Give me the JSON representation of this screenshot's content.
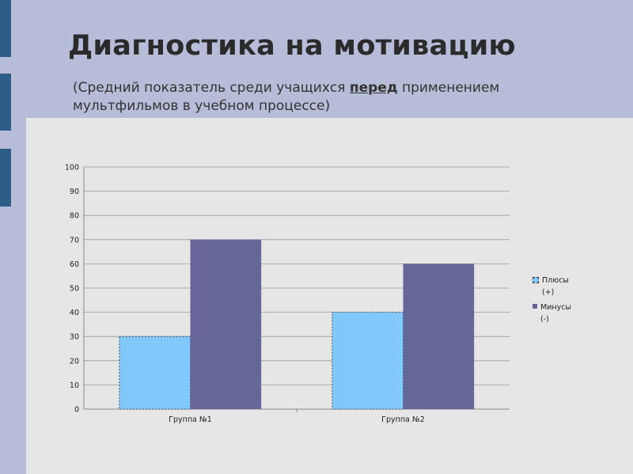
{
  "slide": {
    "title": "Диагностика на мотивацию",
    "subtitle_before": "(Средний показатель среди учащихся ",
    "subtitle_em": "перед",
    "subtitle_after": " применением мультфильмов в учебном процессе)"
  },
  "chart_data": {
    "type": "bar",
    "categories": [
      "Группа №1",
      "Группа №2"
    ],
    "series": [
      {
        "name": "Плюсы (+)",
        "values": [
          30,
          40
        ],
        "color": "#80c8ff"
      },
      {
        "name": "Минусы (-)",
        "values": [
          70,
          60
        ],
        "color": "#666699"
      }
    ],
    "ylim": [
      0,
      100
    ],
    "yticks": [
      0,
      10,
      20,
      30,
      40,
      50,
      60,
      70,
      80,
      90,
      100
    ],
    "grid": true,
    "legend_position": "right"
  }
}
